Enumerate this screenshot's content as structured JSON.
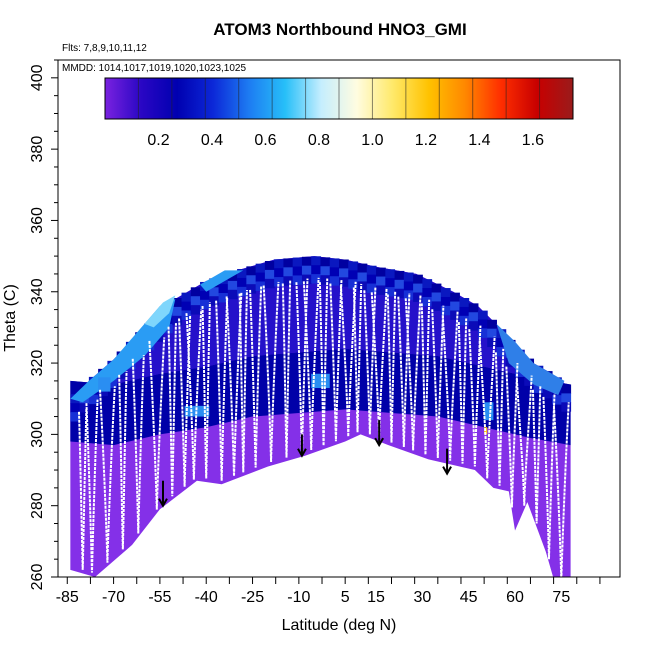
{
  "chart_data": {
    "type": "heatmap",
    "title": "ATOM3 Northbound HNO3_GMI",
    "flights_label": "Flts: 7,8,9,10,11,12",
    "dates_label": "MMDD: 1014,1017,1019,1020,1023,1025",
    "xlabel": "Latitude (deg N)",
    "ylabel": "Theta (C)",
    "xlim": [
      -88,
      94
    ],
    "ylim": [
      260,
      405
    ],
    "x_ticks": [
      -85,
      -70,
      -55,
      -40,
      -25,
      -10,
      5,
      15,
      30,
      45,
      60,
      75
    ],
    "y_ticks": [
      260,
      280,
      300,
      320,
      340,
      360,
      380,
      400
    ],
    "colorbar": {
      "range": [
        0,
        1.75
      ],
      "ticks": [
        0.2,
        0.4,
        0.6,
        0.8,
        1.0,
        1.2,
        1.4,
        1.6
      ],
      "tick_labels": [
        "0.2",
        "0.4",
        "0.6",
        "0.8",
        "1.0",
        "1.2",
        "1.4",
        "1.6"
      ],
      "colors": [
        "#7a22e0",
        "#2a07c4",
        "#0000b0",
        "#0c28d8",
        "#1d7cf2",
        "#27bff8",
        "#c5eefe",
        "#fffce0",
        "#ffe96a",
        "#ffc200",
        "#ff8800",
        "#ff2e00",
        "#c80000",
        "#9a1b1b"
      ]
    },
    "field": {
      "lat_range": [
        -84,
        78
      ],
      "base_color": "#8430e8",
      "bottom_boundary": [
        [
          -84,
          262
        ],
        [
          -76,
          260
        ],
        [
          -64,
          269
        ],
        [
          -55,
          279
        ],
        [
          -43,
          287
        ],
        [
          -35,
          286
        ],
        [
          -20,
          291
        ],
        [
          -8,
          294
        ],
        [
          5,
          298
        ],
        [
          10,
          300
        ],
        [
          19,
          297
        ],
        [
          32,
          293
        ],
        [
          47,
          290
        ],
        [
          53,
          285
        ],
        [
          58,
          284
        ],
        [
          60,
          273
        ],
        [
          64,
          281
        ],
        [
          70,
          267
        ],
        [
          73,
          258
        ],
        [
          78,
          258
        ]
      ],
      "top_boundary": [
        [
          -84,
          310
        ],
        [
          -78,
          315
        ],
        [
          -70,
          321
        ],
        [
          -60,
          330
        ],
        [
          -50,
          338
        ],
        [
          -40,
          343
        ],
        [
          -30,
          346
        ],
        [
          -18,
          349
        ],
        [
          -5,
          350
        ],
        [
          5,
          349
        ],
        [
          15,
          347
        ],
        [
          28,
          345
        ],
        [
          40,
          340
        ],
        [
          48,
          336
        ],
        [
          55,
          330
        ],
        [
          60,
          325
        ],
        [
          66,
          320
        ],
        [
          72,
          317
        ],
        [
          78,
          313
        ]
      ],
      "dark_band": [
        [
          -84,
          301
        ],
        [
          -70,
          300
        ],
        [
          -55,
          303
        ],
        [
          -40,
          305
        ],
        [
          -25,
          308
        ],
        [
          -10,
          309
        ],
        [
          5,
          310
        ],
        [
          20,
          309
        ],
        [
          35,
          308
        ],
        [
          50,
          305
        ],
        [
          65,
          302
        ],
        [
          78,
          300
        ]
      ]
    },
    "profiles_lat": [
      -80,
      -77,
      -72,
      -67,
      -62,
      -56,
      -51,
      -47,
      -44,
      -40,
      -35,
      -31,
      -28,
      -24,
      -19,
      -14,
      -9,
      -6,
      -2,
      2,
      6,
      9,
      13,
      16,
      20,
      24,
      27,
      31,
      35,
      39,
      43,
      47,
      51,
      55,
      59,
      63,
      67,
      71,
      75
    ],
    "arrows": [
      {
        "lat": -54,
        "theta_from": 287,
        "theta_to": 280
      },
      {
        "lat": -9,
        "theta_from": 300,
        "theta_to": 294
      },
      {
        "lat": 16,
        "theta_from": 304,
        "theta_to": 297
      },
      {
        "lat": 38,
        "theta_from": 296,
        "theta_to": 289
      }
    ]
  }
}
